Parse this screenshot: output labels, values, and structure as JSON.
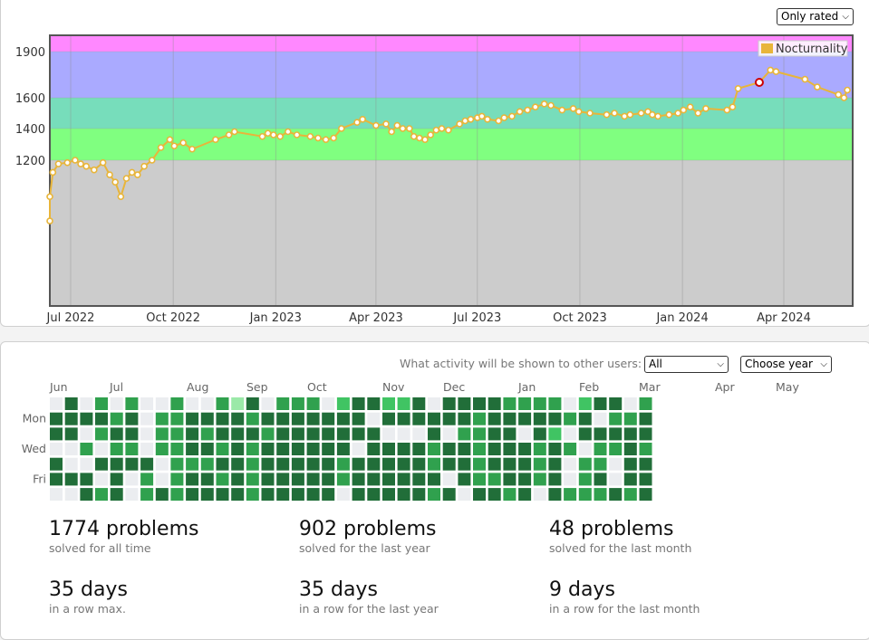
{
  "rating": {
    "filter_select": {
      "value": "Only rated"
    },
    "legend": "Nocturnality",
    "chart_data": {
      "type": "line",
      "series": [
        {
          "name": "Nocturnality",
          "x": [
            "2022-06-10",
            "2022-06-12",
            "2022-06-15",
            "2022-06-20",
            "2022-06-28",
            "2022-07-05",
            "2022-07-10",
            "2022-07-15",
            "2022-07-22",
            "2022-07-30",
            "2022-08-05",
            "2022-08-10",
            "2022-08-15",
            "2022-08-20",
            "2022-08-25",
            "2022-08-30",
            "2022-09-05",
            "2022-09-12",
            "2022-09-20",
            "2022-09-28",
            "2022-10-02",
            "2022-10-10",
            "2022-10-18",
            "2022-11-08",
            "2022-11-20",
            "2022-11-25",
            "2022-12-20",
            "2022-12-25",
            "2022-12-30",
            "2023-01-05",
            "2023-01-12",
            "2023-01-20",
            "2023-02-01",
            "2023-02-08",
            "2023-02-15",
            "2023-02-22",
            "2023-03-01",
            "2023-03-15",
            "2023-03-20",
            "2023-04-01",
            "2023-04-10",
            "2023-04-15",
            "2023-04-20",
            "2023-04-25",
            "2023-05-01",
            "2023-05-05",
            "2023-05-10",
            "2023-05-15",
            "2023-05-20",
            "2023-05-25",
            "2023-05-30",
            "2023-06-05",
            "2023-06-15",
            "2023-06-20",
            "2023-06-25",
            "2023-07-01",
            "2023-07-05",
            "2023-07-10",
            "2023-07-20",
            "2023-07-25",
            "2023-08-01",
            "2023-08-08",
            "2023-08-15",
            "2023-08-22",
            "2023-08-30",
            "2023-09-05",
            "2023-09-15",
            "2023-09-25",
            "2023-09-30",
            "2023-10-10",
            "2023-10-25",
            "2023-11-01",
            "2023-11-10",
            "2023-11-15",
            "2023-11-25",
            "2023-12-01",
            "2023-12-05",
            "2023-12-10",
            "2023-12-20",
            "2023-12-28",
            "2024-01-02",
            "2024-01-08",
            "2024-01-15",
            "2024-01-22",
            "2024-02-10",
            "2024-02-15",
            "2024-02-20",
            "2024-03-10",
            "2024-03-20",
            "2024-03-25",
            "2024-04-20",
            "2024-05-01",
            "2024-05-20",
            "2024-05-25",
            "2024-05-28"
          ],
          "y": [
            700,
            900,
            1100,
            1170,
            1180,
            1200,
            1170,
            1150,
            1120,
            1180,
            1080,
            1020,
            900,
            1050,
            1100,
            1080,
            1150,
            1200,
            1280,
            1330,
            1290,
            1310,
            1270,
            1330,
            1360,
            1380,
            1350,
            1370,
            1360,
            1350,
            1380,
            1360,
            1350,
            1340,
            1330,
            1340,
            1400,
            1440,
            1460,
            1420,
            1430,
            1380,
            1420,
            1400,
            1400,
            1350,
            1340,
            1330,
            1360,
            1390,
            1400,
            1390,
            1430,
            1450,
            1460,
            1470,
            1480,
            1460,
            1450,
            1470,
            1480,
            1510,
            1520,
            1540,
            1560,
            1550,
            1520,
            1530,
            1510,
            1500,
            1490,
            1500,
            1480,
            1490,
            1500,
            1510,
            1490,
            1480,
            1490,
            1500,
            1520,
            1540,
            1500,
            1530,
            1520,
            1540,
            1660,
            1700,
            1780,
            1770,
            1720,
            1670,
            1620,
            1600,
            1650
          ]
        }
      ],
      "bands": [
        {
          "from": 0,
          "to": 1200,
          "color": "#cccccc"
        },
        {
          "from": 1200,
          "to": 1400,
          "color": "#80ff80"
        },
        {
          "from": 1400,
          "to": 1600,
          "color": "#77ddbb"
        },
        {
          "from": 1600,
          "to": 1900,
          "color": "#aaaaff"
        },
        {
          "from": 1900,
          "to": 2100,
          "color": "#ff88ff"
        }
      ],
      "y_ticks": [
        "1200",
        "1400",
        "1600",
        "1900"
      ],
      "x_ticks": [
        "Jul 2022",
        "Oct 2022",
        "Jan 2023",
        "Apr 2023",
        "Jul 2023",
        "Oct 2023",
        "Jan 2024",
        "Apr 2024"
      ],
      "grid": true,
      "legend_position": "top-right",
      "line_color": "#e8b53a",
      "highlight_point": {
        "x": "2024-03-10",
        "y": 1780,
        "color": "#cc0000"
      }
    }
  },
  "activity": {
    "caption": "What activity will be shown to other users:",
    "visibility_select": {
      "value": "All"
    },
    "year_select": {
      "value": "Choose year"
    },
    "months": [
      "Jun",
      "Jul",
      "Aug",
      "Sep",
      "Oct",
      "Nov",
      "Dec",
      "Jan",
      "Feb",
      "Mar",
      "Apr",
      "May"
    ],
    "days": [
      "Mon",
      "Wed",
      "Fri"
    ],
    "colors": [
      "#ebedf0",
      "#9be9a8",
      "#40c463",
      "#30a14e",
      "#216e39"
    ],
    "grid_rows": [
      "0403030030031403330244224044443333024403",
      "4444340334444344444440444444344444340334",
      "4403440334344434444444000403344042044444",
      "0030330334434344444404444344344434303343",
      "4004444033344344444344444344344434033044",
      "4440403034434344444344444404334434034044",
      "0043403434444344444044444340443404333434"
    ]
  },
  "stats": [
    {
      "big": "1774 problems",
      "small": "solved for all time"
    },
    {
      "big": "902 problems",
      "small": "solved for the last year"
    },
    {
      "big": "48 problems",
      "small": "solved for the last month"
    },
    {
      "big": "35 days",
      "small": "in a row max."
    },
    {
      "big": "35 days",
      "small": "in a row for the last year"
    },
    {
      "big": "9 days",
      "small": "in a row for the last month"
    }
  ]
}
